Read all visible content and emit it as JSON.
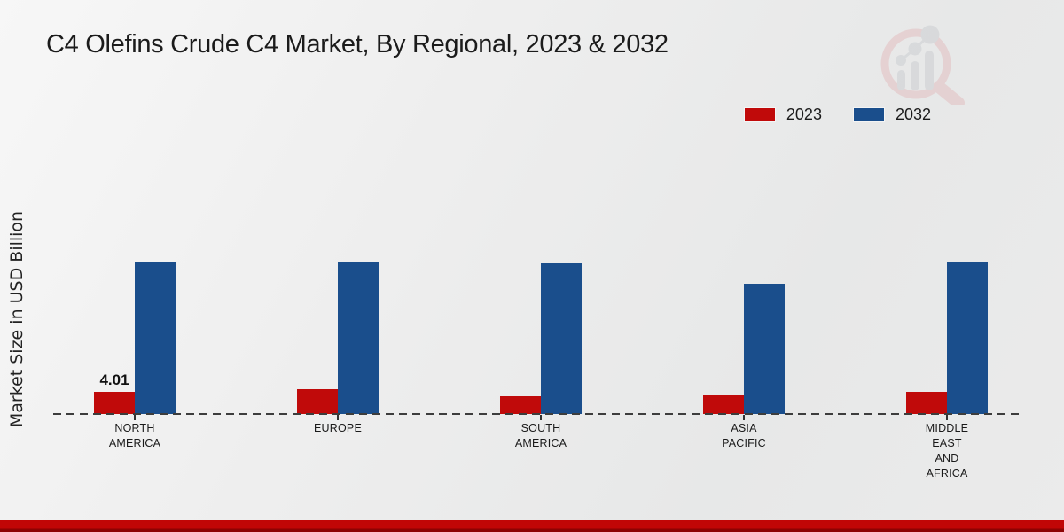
{
  "title": "C4 Olefins Crude C4 Market, By Regional, 2023 & 2032",
  "colors": {
    "series_2023": "#c00a0a",
    "series_2032": "#1a4e8c",
    "footer_band": "#c10606",
    "footer_band_dark": "#8d0303",
    "text": "#1a1a1a",
    "watermark_pink": "#e2b6b8",
    "watermark_gray": "#c6c8cd"
  },
  "legend": {
    "items": [
      {
        "label": "2023",
        "color": "#c00a0a"
      },
      {
        "label": "2032",
        "color": "#1a4e8c"
      }
    ],
    "position": "top-right"
  },
  "watermark": {
    "name": "market-research-magnifier-logo"
  },
  "chart_data": {
    "type": "bar",
    "categories": [
      "NORTH\nAMERICA",
      "EUROPE",
      "SOUTH\nAMERICA",
      "ASIA\nPACIFIC",
      "MIDDLE\nEAST\nAND\nAFRICA"
    ],
    "series": [
      {
        "name": "2023",
        "color": "#c00a0a",
        "values": [
          4.01,
          4.4,
          3.2,
          3.5,
          3.9
        ]
      },
      {
        "name": "2032",
        "color": "#1a4e8c",
        "values": [
          27.2,
          27.3,
          27.0,
          23.3,
          27.2
        ]
      }
    ],
    "data_labels": [
      {
        "series_index": 0,
        "category_index": 0,
        "text": "4.01"
      }
    ],
    "title": "C4 Olefins Crude C4 Market, By Regional, 2023 & 2032",
    "xlabel": "",
    "ylabel": "Market Size in USD Billion",
    "ylim": [
      0,
      30
    ],
    "grid": false,
    "y_axis_ticks_visible": false,
    "baseline_style": "dashed",
    "legend_position": "top-right"
  }
}
